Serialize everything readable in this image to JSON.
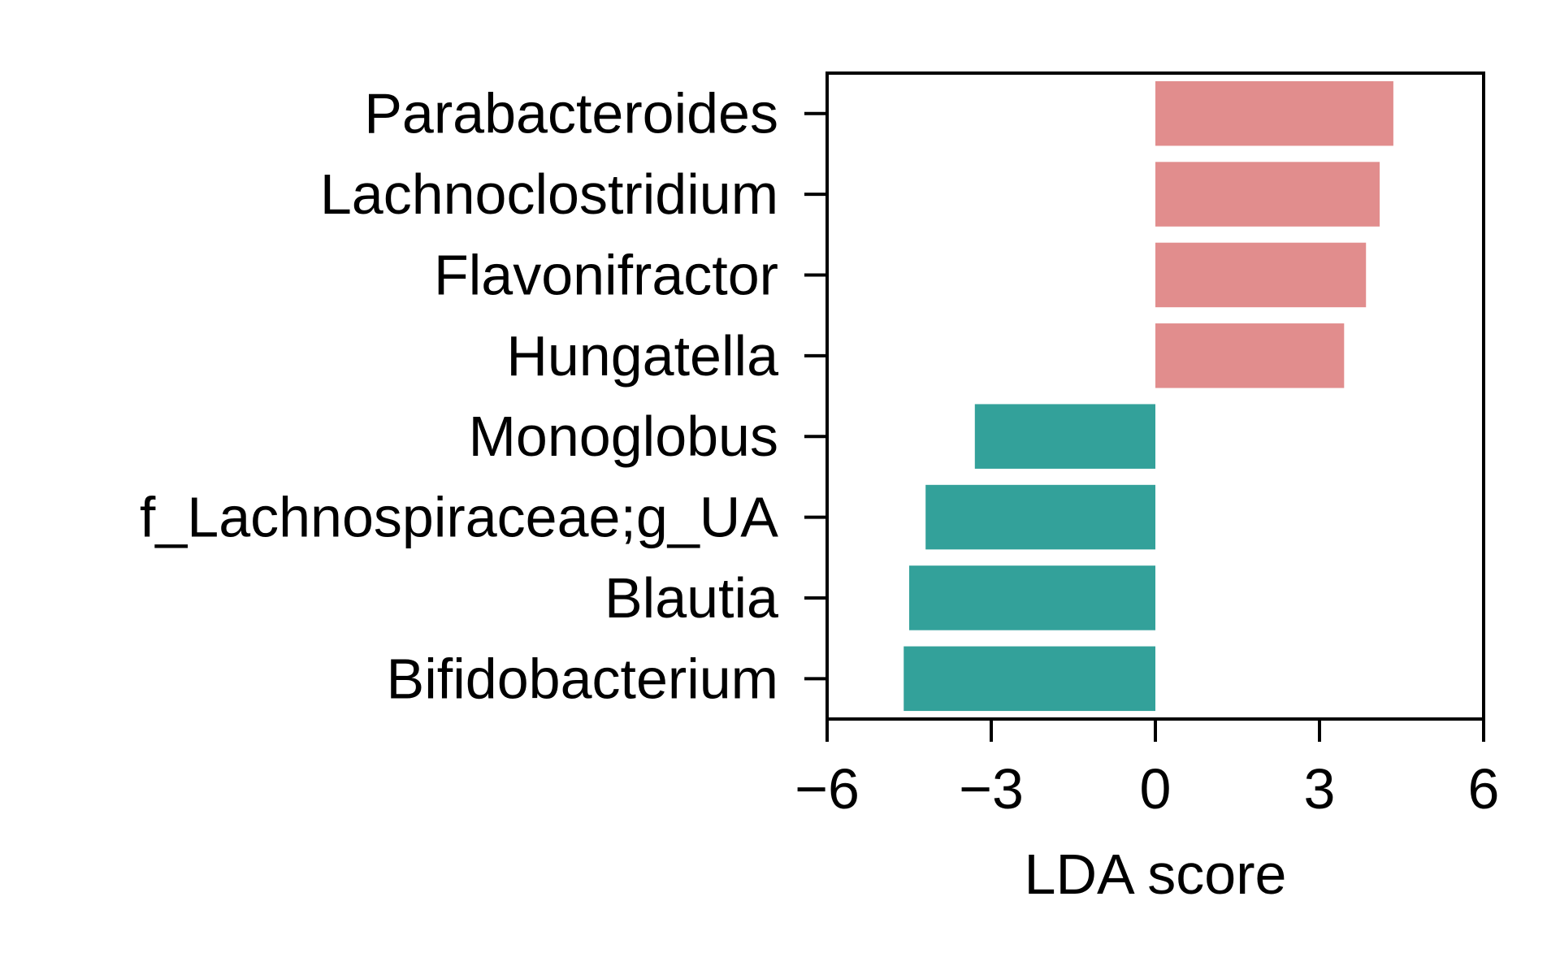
{
  "chart_data": {
    "type": "bar",
    "orientation": "horizontal",
    "categories": [
      "Parabacteroides",
      "Lachnoclostridium",
      "Flavonifractor",
      "Hungatella",
      "Monoglobus",
      "f_Lachnospiraceae;g_UA",
      "Blautia",
      "Bifidobacterium"
    ],
    "values": [
      4.35,
      4.1,
      3.85,
      3.45,
      -3.3,
      -4.2,
      -4.5,
      -4.6
    ],
    "xlabel": "LDA score",
    "ylabel": "",
    "title": "",
    "xlim": [
      -6,
      6
    ],
    "xticks": [
      -6,
      -3,
      0,
      3,
      6
    ],
    "xtick_labels": [
      "−6",
      "−3",
      "0",
      "3",
      "6"
    ],
    "grid": false,
    "colors": {
      "positive": "#e18d8d",
      "negative": "#33a19a"
    }
  }
}
